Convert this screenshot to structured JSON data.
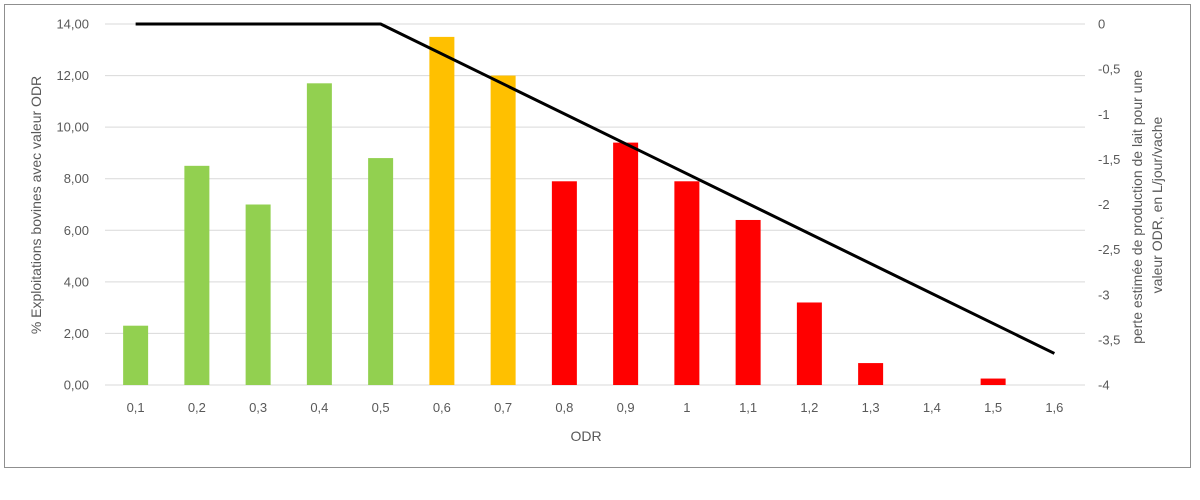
{
  "chart_data": {
    "type": "bar",
    "title": "",
    "xlabel": "ODR",
    "ylabel": "% Exploitations bovines avec valeur ODR",
    "y2label": "perte estimée de production de lait pour une valeur ODR, en L/jour/vache",
    "categories": [
      "0,1",
      "0,2",
      "0,3",
      "0,4",
      "0,5",
      "0,6",
      "0,7",
      "0,8",
      "0,9",
      "1",
      "1,1",
      "1,2",
      "1,3",
      "1,4",
      "1,5",
      "1,6"
    ],
    "values": [
      2.3,
      8.5,
      7.0,
      11.7,
      8.8,
      13.5,
      12.0,
      7.9,
      9.4,
      7.9,
      6.4,
      3.2,
      0.85,
      0,
      0.25,
      0
    ],
    "bar_colors": [
      "#92d050",
      "#92d050",
      "#92d050",
      "#92d050",
      "#92d050",
      "#ffc000",
      "#ffc000",
      "#ff0000",
      "#ff0000",
      "#ff0000",
      "#ff0000",
      "#ff0000",
      "#ff0000",
      "#ff0000",
      "#ff0000",
      "#ff0000"
    ],
    "ylim": [
      0,
      14
    ],
    "yticks": [
      "0,00",
      "2,00",
      "4,00",
      "6,00",
      "8,00",
      "10,00",
      "12,00",
      "14,00"
    ],
    "ytick_values": [
      0,
      2,
      4,
      6,
      8,
      10,
      12,
      14
    ],
    "y2lim": [
      -4,
      0
    ],
    "y2ticks": [
      "0",
      "-0,5",
      "-1",
      "-1,5",
      "-2",
      "-2,5",
      "-3",
      "-3,5",
      "-4"
    ],
    "y2tick_values": [
      0,
      -0.5,
      -1,
      -1.5,
      -2,
      -2.5,
      -3,
      -3.5,
      -4
    ],
    "line": {
      "axis": "secondary",
      "x_index": [
        0,
        4,
        15
      ],
      "y": [
        0,
        0,
        -3.65
      ],
      "color": "#000000"
    },
    "grid": true,
    "legend": "none"
  }
}
